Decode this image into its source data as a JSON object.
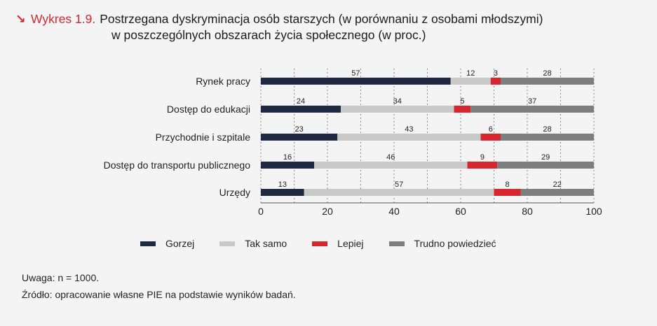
{
  "title": {
    "icon": "arrow-down-right-icon",
    "arrow_glyph": "↘",
    "prefix": "Wykres 1.9.",
    "line1": "Postrzegana dyskryminacja osób starszych (w porównaniu z osobami młodszymi)",
    "line2": "w poszczególnych obszarach życia społecznego  (w proc.)"
  },
  "colors": {
    "accent": "#d7262d",
    "gorzej": "#1f2942",
    "tak_samo": "#c9c9c9",
    "lepiej": "#d7262d",
    "trudno": "#7e7e7e"
  },
  "chart_data": {
    "type": "bar",
    "orientation": "horizontal",
    "stacked": true,
    "categories": [
      "Rynek pracy",
      "Dostęp do edukacji",
      "Przychodnie i szpitale",
      "Dostęp do transportu publicznego",
      "Urzędy"
    ],
    "series": [
      {
        "name": "Gorzej",
        "values": [
          57,
          24,
          23,
          16,
          13
        ]
      },
      {
        "name": "Tak samo",
        "values": [
          12,
          34,
          43,
          46,
          57
        ]
      },
      {
        "name": "Lepiej",
        "values": [
          3,
          5,
          6,
          9,
          8
        ]
      },
      {
        "name": "Trudno powiedzieć",
        "values": [
          28,
          37,
          28,
          29,
          22
        ]
      }
    ],
    "xlim": [
      0,
      100
    ],
    "xticks": [
      "0",
      "20",
      "40",
      "60",
      "80",
      "100"
    ],
    "grid": true,
    "legend_position": "bottom"
  },
  "notes": {
    "uwaga": "Uwaga: n = 1000.",
    "zrodlo": "Źródło: opracowanie własne PIE na podstawie wyników badań."
  }
}
